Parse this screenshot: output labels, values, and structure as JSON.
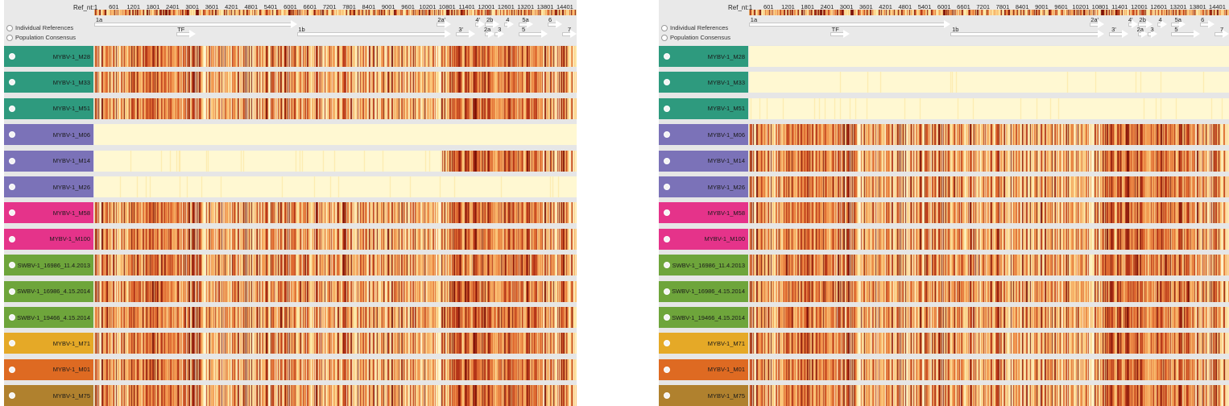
{
  "ruler": {
    "ref_label": "Ref_nt:1",
    "ticks": [
      "601",
      "1201",
      "1801",
      "2401",
      "3001",
      "3601",
      "4201",
      "4801",
      "5401",
      "6001",
      "6601",
      "7201",
      "7801",
      "8401",
      "9001",
      "9601",
      "10201",
      "10801",
      "11401",
      "12001",
      "12601",
      "13201",
      "13801",
      "14401"
    ]
  },
  "genes": [
    {
      "name": "1a",
      "start": 0.0,
      "end": 0.42,
      "labelPos": 0.01,
      "row": 0
    },
    {
      "name": "1b",
      "start": 0.42,
      "end": 0.74,
      "labelPos": 0.43,
      "row": 1
    },
    {
      "name": "TF",
      "start": 0.17,
      "end": 0.21,
      "labelPos": 0.18,
      "row": 1
    },
    {
      "name": "2a'",
      "start": 0.71,
      "end": 0.74,
      "labelPos": 0.72,
      "row": 0
    },
    {
      "name": "3'",
      "start": 0.75,
      "end": 0.79,
      "labelPos": 0.76,
      "row": 1
    },
    {
      "name": "4'",
      "start": 0.79,
      "end": 0.81,
      "labelPos": 0.795,
      "row": 0
    },
    {
      "name": "2b",
      "start": 0.81,
      "end": 0.84,
      "labelPos": 0.82,
      "row": 0
    },
    {
      "name": "2a",
      "start": 0.81,
      "end": 0.83,
      "labelPos": 0.815,
      "row": 1
    },
    {
      "name": "3",
      "start": 0.83,
      "end": 0.85,
      "labelPos": 0.84,
      "row": 1
    },
    {
      "name": "4",
      "start": 0.85,
      "end": 0.87,
      "labelPos": 0.857,
      "row": 0
    },
    {
      "name": "5a",
      "start": 0.88,
      "end": 0.91,
      "labelPos": 0.894,
      "row": 0
    },
    {
      "name": "5",
      "start": 0.88,
      "end": 0.94,
      "labelPos": 0.89,
      "row": 1
    },
    {
      "name": "6",
      "start": 0.94,
      "end": 0.97,
      "labelPos": 0.945,
      "row": 0
    },
    {
      "name": "7",
      "start": 0.97,
      "end": 1.0,
      "labelPos": 0.985,
      "row": 1
    }
  ],
  "colors": {
    "background": "#e6e6e6",
    "heat_scale": [
      "#fff8d2",
      "#fde9a8",
      "#fbc67a",
      "#f29a52",
      "#de6a32",
      "#b33418",
      "#7d1208"
    ],
    "group_mybv_teal": "#2e9a7e",
    "group_mybv_purple": "#7b72b8",
    "group_mybv_pink": "#e5338a",
    "group_swbv_green": "#6ea53b",
    "group_yellow": "#e5a927",
    "group_orange": "#de6a22",
    "group_brown": "#b0812e"
  },
  "panels": [
    {
      "id": "left",
      "options": {
        "individual": "Individual References",
        "consensus": "Population Consensus"
      },
      "rows": [
        {
          "label": "MYBV-1_M28",
          "color": "#2e9a7e",
          "profile": "mybv"
        },
        {
          "label": "MYBV-1_M33",
          "color": "#2e9a7e",
          "profile": "mybv"
        },
        {
          "label": "MYBV-1_M51",
          "color": "#2e9a7e",
          "profile": "mybv"
        },
        {
          "label": "MYBV-1_M06",
          "color": "#7b72b8",
          "profile": "flat"
        },
        {
          "label": "MYBV-1_M14",
          "color": "#7b72b8",
          "profile": "tail"
        },
        {
          "label": "MYBV-1_M26",
          "color": "#7b72b8",
          "profile": "faint"
        },
        {
          "label": "MYBV-1_M58",
          "color": "#e5338a",
          "profile": "mybv"
        },
        {
          "label": "MYBV-1_M100",
          "color": "#e5338a",
          "profile": "mybv"
        },
        {
          "label": "SWBV-1_16986_11.4.2013",
          "color": "#6ea53b",
          "profile": "swbv"
        },
        {
          "label": "SWBV-1_16986_4.15.2014",
          "color": "#6ea53b",
          "profile": "swbv"
        },
        {
          "label": "SWBV-1_19466_4.15.2014",
          "color": "#6ea53b",
          "profile": "swbv"
        },
        {
          "label": "MYBV-1_M71",
          "color": "#e5a927",
          "profile": "mybv"
        },
        {
          "label": "MYBV-1_M01",
          "color": "#de6a22",
          "profile": "mybv"
        },
        {
          "label": "MYBV-1_M75",
          "color": "#b0812e",
          "profile": "mybv"
        }
      ]
    },
    {
      "id": "right",
      "options": {
        "individual": "Individual References",
        "consensus": "Population Consensus"
      },
      "rows": [
        {
          "label": "MYBV-1_M28",
          "color": "#2e9a7e",
          "profile": "flat"
        },
        {
          "label": "MYBV-1_M33",
          "color": "#2e9a7e",
          "profile": "faint"
        },
        {
          "label": "MYBV-1_M51",
          "color": "#2e9a7e",
          "profile": "faint"
        },
        {
          "label": "MYBV-1_M06",
          "color": "#7b72b8",
          "profile": "mybv"
        },
        {
          "label": "MYBV-1_M14",
          "color": "#7b72b8",
          "profile": "mybv"
        },
        {
          "label": "MYBV-1_M26",
          "color": "#7b72b8",
          "profile": "mybv"
        },
        {
          "label": "MYBV-1_M58",
          "color": "#e5338a",
          "profile": "mybv"
        },
        {
          "label": "MYBV-1_M100",
          "color": "#e5338a",
          "profile": "mybv"
        },
        {
          "label": "SWBV-1_16986_11.4.2013",
          "color": "#6ea53b",
          "profile": "swbv"
        },
        {
          "label": "SWBV-1_16986_4.15.2014",
          "color": "#6ea53b",
          "profile": "swbv"
        },
        {
          "label": "SWBV-1_19466_4.15.2014",
          "color": "#6ea53b",
          "profile": "swbv"
        },
        {
          "label": "MYBV-1_M71",
          "color": "#e5a927",
          "profile": "mybv"
        },
        {
          "label": "MYBV-1_M01",
          "color": "#de6a22",
          "profile": "mybv"
        },
        {
          "label": "MYBV-1_M75",
          "color": "#b0812e",
          "profile": "mybv"
        }
      ]
    }
  ]
}
